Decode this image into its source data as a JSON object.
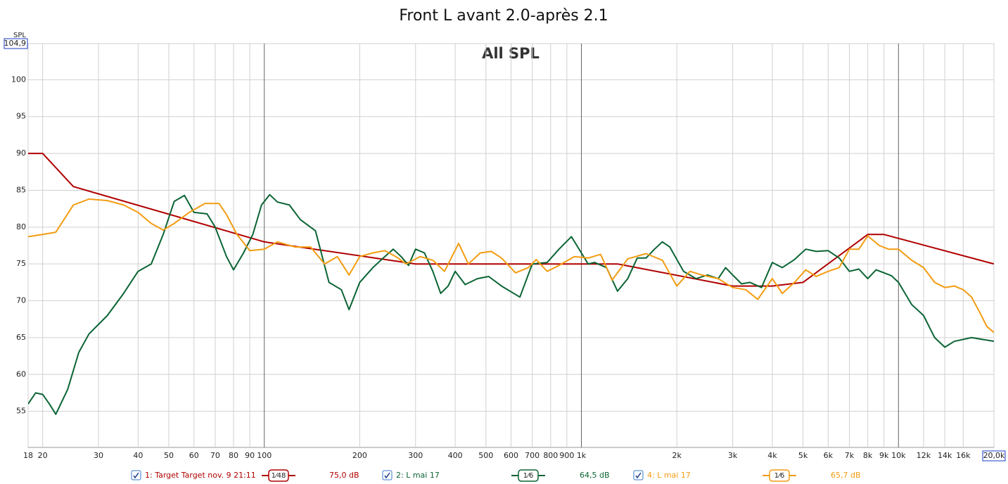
{
  "chart_data": {
    "type": "line",
    "title": "Front L avant 2.0-après 2.1",
    "subtitle": "All SPL",
    "y_label": "SPL",
    "xscale": "log",
    "grid": true,
    "xlim": [
      18,
      20000
    ],
    "ylim": [
      50.1,
      104.9
    ],
    "yticks": [
      55,
      60,
      65,
      70,
      75,
      80,
      85,
      90,
      95,
      100,
      {
        "value": 104.9,
        "label": "104,9"
      }
    ],
    "xticks": [
      18,
      20,
      30,
      40,
      50,
      60,
      70,
      80,
      90,
      100,
      200,
      300,
      400,
      500,
      600,
      700,
      800,
      900,
      {
        "value": 1000,
        "label": "1k"
      },
      {
        "value": 2000,
        "label": "2k"
      },
      {
        "value": 3000,
        "label": "3k"
      },
      {
        "value": 4000,
        "label": "4k"
      },
      {
        "value": 5000,
        "label": "5k"
      },
      {
        "value": 6000,
        "label": "6k"
      },
      {
        "value": 7000,
        "label": "7k"
      },
      {
        "value": 8000,
        "label": "8k"
      },
      {
        "value": 9000,
        "label": "9k"
      },
      {
        "value": 10000,
        "label": "10k"
      },
      {
        "value": 12000,
        "label": "12k"
      },
      {
        "value": 14000,
        "label": "14k"
      },
      {
        "value": 16000,
        "label": "16k"
      },
      {
        "value": 20000,
        "label": "20,0k"
      }
    ],
    "series": [
      {
        "name": "1: Target Target nov. 9 21:11",
        "smoothing": "1⁄48",
        "level": "75,0 dB",
        "color": "#b00000",
        "x": [
          18,
          20,
          25,
          100,
          300,
          1300,
          3000,
          4000,
          5000,
          8000,
          9000,
          20000
        ],
        "values": [
          90,
          90,
          85.5,
          78,
          75,
          75,
          72,
          72,
          72.5,
          79,
          79,
          75
        ]
      },
      {
        "name": "2: L mai 17",
        "smoothing": "1⁄6",
        "level": "64,5 dB",
        "color": "#0b6434",
        "x": [
          18,
          19,
          20,
          21,
          22,
          24,
          26,
          28,
          32,
          36,
          40,
          44,
          48,
          52,
          56,
          60,
          66,
          70,
          76,
          80,
          86,
          92,
          98,
          104,
          110,
          120,
          130,
          145,
          160,
          175,
          185,
          200,
          220,
          240,
          255,
          270,
          285,
          300,
          320,
          340,
          360,
          380,
          400,
          430,
          470,
          510,
          560,
          640,
          700,
          780,
          850,
          930,
          1000,
          1050,
          1100,
          1200,
          1300,
          1400,
          1500,
          1600,
          1700,
          1800,
          1900,
          2100,
          2300,
          2500,
          2700,
          2850,
          3000,
          3200,
          3400,
          3700,
          4000,
          4300,
          4700,
          5100,
          5500,
          6000,
          6500,
          7000,
          7500,
          8000,
          8500,
          9000,
          9500,
          10000,
          11000,
          12000,
          13000,
          14000,
          15000,
          17000,
          20000
        ],
        "values": [
          56,
          57.5,
          57.3,
          56,
          54.6,
          58,
          63,
          65.5,
          68,
          71,
          74,
          75,
          79,
          83.5,
          84.3,
          82,
          81.8,
          80,
          76,
          74.2,
          76.5,
          79,
          83,
          84.4,
          83.4,
          83,
          81,
          79.5,
          72.5,
          71.5,
          68.8,
          72.5,
          74.5,
          76,
          77,
          76,
          74.8,
          77,
          76.5,
          74,
          71,
          72,
          74,
          72.2,
          73,
          73.3,
          72,
          70.5,
          75,
          75.2,
          77,
          78.7,
          76.5,
          75,
          75.2,
          74.5,
          71.3,
          73,
          75.8,
          75.8,
          77,
          78,
          77.3,
          74,
          73,
          73.5,
          73,
          74.5,
          73.5,
          72.3,
          72.5,
          71.8,
          75.2,
          74.5,
          75.6,
          77,
          76.7,
          76.8,
          75.8,
          74,
          74.3,
          73,
          74.2,
          73.8,
          73.4,
          72.5,
          69.5,
          68,
          65,
          63.7,
          64.5,
          65,
          64.5
        ]
      },
      {
        "name": "4: L mai 17",
        "smoothing": "1⁄6",
        "level": "65,7 dB",
        "color": "#f39c12",
        "x": [
          18,
          20,
          22,
          25,
          28,
          32,
          36,
          40,
          44,
          48,
          52,
          58,
          65,
          72,
          76,
          82,
          90,
          100,
          110,
          125,
          140,
          155,
          170,
          185,
          200,
          220,
          240,
          260,
          280,
          310,
          340,
          370,
          410,
          440,
          480,
          520,
          560,
          620,
          680,
          720,
          780,
          850,
          950,
          1050,
          1150,
          1250,
          1400,
          1600,
          1800,
          2000,
          2200,
          2400,
          2700,
          3000,
          3300,
          3600,
          4000,
          4300,
          4700,
          5100,
          5500,
          6000,
          6500,
          7000,
          7500,
          8000,
          8700,
          9300,
          10000,
          11000,
          12000,
          13000,
          14000,
          15000,
          16000,
          17000,
          18000,
          19000,
          20000
        ],
        "values": [
          78.7,
          79,
          79.3,
          83,
          83.8,
          83.6,
          83,
          82,
          80.5,
          79.6,
          80.5,
          82,
          83.2,
          83.2,
          81.7,
          79,
          76.8,
          77,
          78,
          77.3,
          77.3,
          75,
          76,
          73.5,
          76,
          76.5,
          76.8,
          76,
          75,
          76,
          75.5,
          74,
          77.8,
          75,
          76.5,
          76.7,
          75.8,
          73.8,
          74.5,
          75.6,
          74,
          74.8,
          76,
          75.8,
          76.3,
          72.8,
          75.7,
          76.4,
          75.5,
          72,
          74,
          73.5,
          73,
          71.8,
          71.5,
          70.2,
          73,
          71,
          72.5,
          74.2,
          73.3,
          74,
          74.5,
          77,
          77,
          78.8,
          77.5,
          77,
          77,
          75.5,
          74.5,
          72.5,
          71.8,
          72,
          71.5,
          70.5,
          68.5,
          66.5,
          65.7
        ]
      }
    ]
  }
}
